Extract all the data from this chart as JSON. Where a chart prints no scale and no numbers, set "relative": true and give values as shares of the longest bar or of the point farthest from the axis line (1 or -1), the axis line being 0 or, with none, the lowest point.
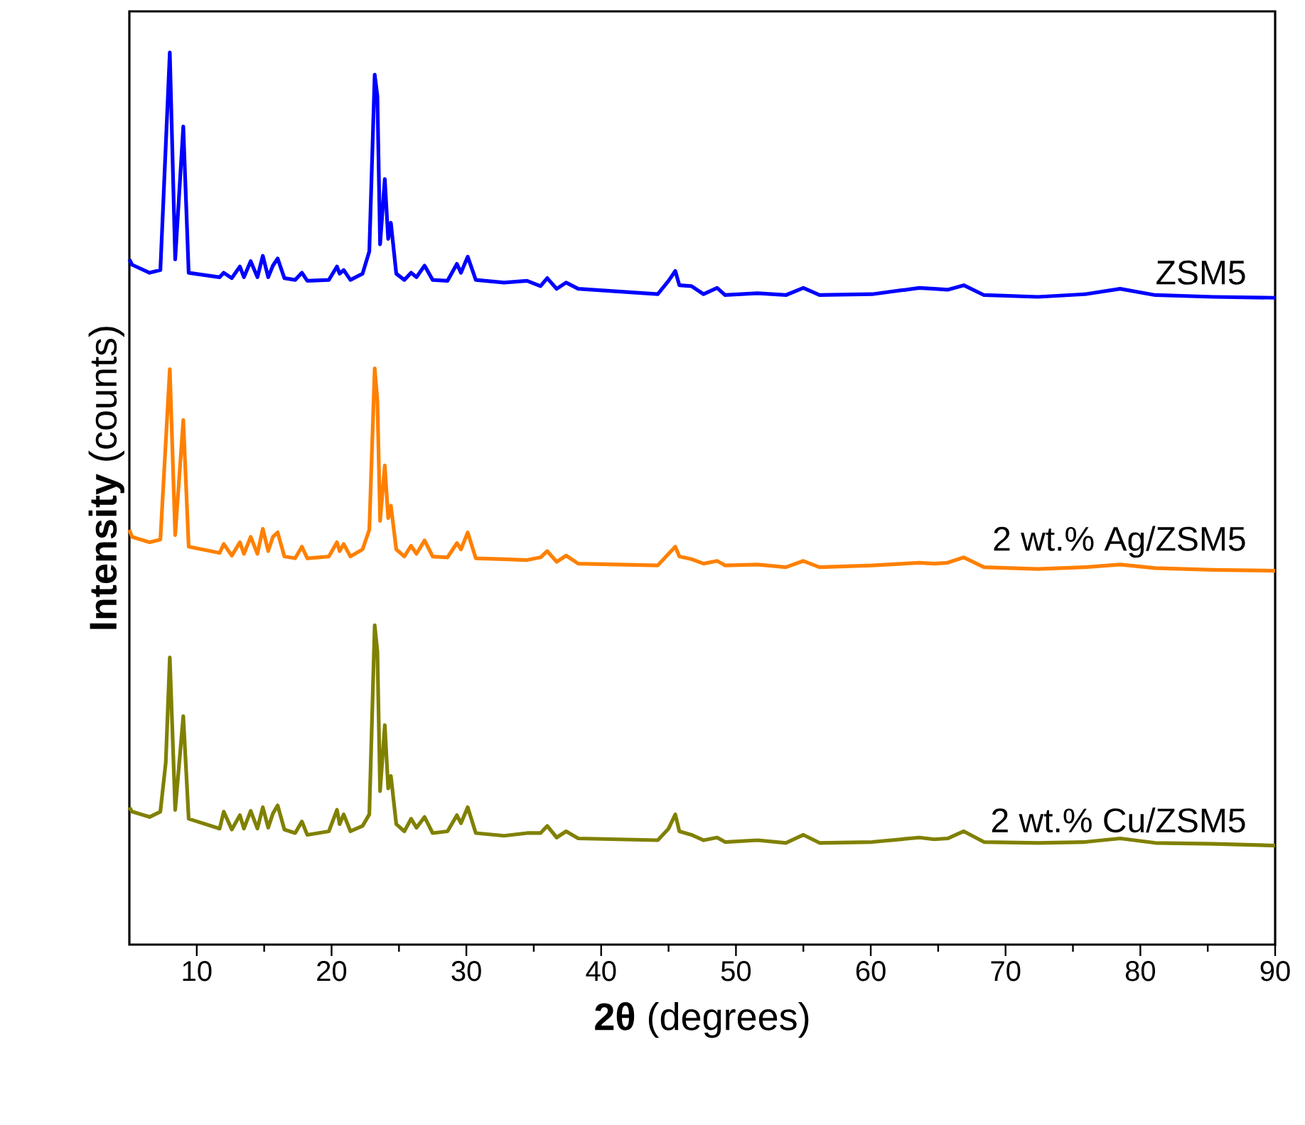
{
  "chart_data": {
    "type": "line",
    "relative": true,
    "xlabel": "**2θ** (degrees)",
    "ylabel": "**Intensity** (counts)",
    "xlim": [
      5,
      90
    ],
    "xticks": [
      10,
      20,
      30,
      40,
      50,
      60,
      70,
      80,
      90
    ],
    "series": [
      {
        "name": "ZSM5",
        "color": "#0000ff",
        "x": [
          5,
          5.2,
          6.5,
          7.3,
          8.0,
          8.4,
          9.0,
          9.4,
          11.7,
          12.0,
          12.6,
          13.2,
          13.5,
          14.0,
          14.5,
          14.9,
          15.3,
          15.65,
          16.0,
          16.5,
          17.3,
          17.8,
          18.2,
          19.8,
          20.4,
          20.6,
          20.9,
          21.4,
          22.3,
          22.8,
          23.2,
          23.4,
          23.6,
          23.95,
          24.2,
          24.4,
          24.8,
          25.4,
          25.9,
          26.3,
          26.9,
          27.5,
          28.6,
          29.3,
          29.6,
          30.1,
          30.7,
          32.8,
          34.5,
          35.5,
          36.0,
          36.7,
          37.4,
          38.3,
          44.2,
          45.0,
          45.5,
          45.8,
          46.7,
          47.6,
          48.6,
          49.2,
          51.6,
          53.7,
          55.0,
          56.2,
          60.1,
          63.6,
          64.7,
          65.7,
          66.9,
          68.4,
          72.4,
          75.9,
          78.5,
          81.1,
          85.4,
          90
        ],
        "values": [
          0.768,
          0.762,
          0.753,
          0.756,
          1.0,
          0.768,
          0.917,
          0.753,
          0.748,
          0.753,
          0.747,
          0.76,
          0.748,
          0.766,
          0.748,
          0.772,
          0.748,
          0.761,
          0.769,
          0.747,
          0.745,
          0.753,
          0.744,
          0.745,
          0.76,
          0.752,
          0.756,
          0.745,
          0.752,
          0.777,
          0.975,
          0.951,
          0.785,
          0.858,
          0.791,
          0.809,
          0.752,
          0.745,
          0.753,
          0.748,
          0.761,
          0.745,
          0.744,
          0.763,
          0.753,
          0.771,
          0.745,
          0.742,
          0.744,
          0.738,
          0.747,
          0.735,
          0.742,
          0.735,
          0.729,
          0.744,
          0.755,
          0.739,
          0.738,
          0.729,
          0.736,
          0.728,
          0.73,
          0.728,
          0.736,
          0.728,
          0.729,
          0.736,
          0.735,
          0.734,
          0.739,
          0.728,
          0.726,
          0.729,
          0.735,
          0.728,
          0.726,
          0.725
        ]
      },
      {
        "name": "2 wt.% Ag/ZSM5",
        "color": "#ff8000",
        "x": [
          5,
          5.2,
          6.5,
          7.3,
          8.0,
          8.4,
          9.0,
          9.4,
          11.7,
          12.0,
          12.6,
          13.2,
          13.5,
          14.0,
          14.5,
          14.9,
          15.3,
          15.65,
          16.0,
          16.5,
          17.3,
          17.8,
          18.2,
          19.8,
          20.4,
          20.6,
          20.9,
          21.4,
          22.3,
          22.8,
          23.2,
          23.4,
          23.6,
          23.95,
          24.2,
          24.4,
          24.8,
          25.4,
          25.9,
          26.3,
          26.9,
          27.5,
          28.6,
          29.3,
          29.6,
          30.1,
          30.7,
          32.8,
          34.5,
          35.5,
          36.0,
          36.7,
          37.4,
          38.3,
          44.2,
          45.0,
          45.5,
          45.8,
          46.7,
          47.6,
          48.6,
          49.2,
          51.6,
          53.7,
          55.0,
          56.2,
          60.1,
          63.6,
          64.7,
          65.7,
          66.9,
          68.4,
          72.4,
          75.9,
          78.5,
          81.1,
          85.4,
          90
        ],
        "values": [
          0.465,
          0.457,
          0.451,
          0.454,
          0.645,
          0.459,
          0.588,
          0.446,
          0.439,
          0.449,
          0.436,
          0.451,
          0.438,
          0.457,
          0.438,
          0.466,
          0.441,
          0.457,
          0.462,
          0.435,
          0.433,
          0.446,
          0.433,
          0.435,
          0.451,
          0.441,
          0.449,
          0.435,
          0.443,
          0.465,
          0.646,
          0.61,
          0.475,
          0.537,
          0.478,
          0.492,
          0.443,
          0.435,
          0.447,
          0.438,
          0.453,
          0.435,
          0.434,
          0.45,
          0.443,
          0.462,
          0.433,
          0.432,
          0.431,
          0.434,
          0.441,
          0.429,
          0.436,
          0.427,
          0.425,
          0.438,
          0.446,
          0.435,
          0.432,
          0.427,
          0.43,
          0.425,
          0.426,
          0.423,
          0.43,
          0.423,
          0.425,
          0.428,
          0.427,
          0.428,
          0.434,
          0.423,
          0.421,
          0.423,
          0.426,
          0.422,
          0.42,
          0.419
        ]
      },
      {
        "name": "2 wt.% Cu/ZSM5",
        "color": "#808000",
        "x": [
          5,
          5.2,
          6.5,
          7.3,
          7.7,
          8.0,
          8.4,
          9.0,
          9.4,
          11.7,
          12.0,
          12.6,
          13.2,
          13.5,
          14.0,
          14.5,
          14.9,
          15.3,
          15.65,
          16.0,
          16.5,
          17.3,
          17.8,
          18.2,
          19.8,
          20.4,
          20.6,
          20.9,
          21.4,
          22.3,
          22.8,
          23.2,
          23.4,
          23.6,
          23.95,
          24.2,
          24.4,
          24.8,
          25.4,
          25.9,
          26.3,
          26.9,
          27.5,
          28.6,
          29.3,
          29.6,
          30.1,
          30.7,
          32.8,
          34.5,
          35.5,
          36.0,
          36.7,
          37.4,
          38.3,
          44.2,
          45.0,
          45.5,
          45.8,
          46.7,
          47.6,
          48.6,
          49.2,
          51.6,
          53.7,
          55.0,
          56.2,
          60.1,
          63.6,
          64.7,
          65.7,
          66.9,
          68.4,
          72.4,
          75.9,
          78.5,
          81.1,
          85.4,
          90
        ],
        "values": [
          0.154,
          0.149,
          0.143,
          0.149,
          0.204,
          0.322,
          0.151,
          0.256,
          0.141,
          0.13,
          0.149,
          0.129,
          0.145,
          0.13,
          0.15,
          0.13,
          0.154,
          0.131,
          0.147,
          0.156,
          0.129,
          0.125,
          0.138,
          0.123,
          0.127,
          0.151,
          0.135,
          0.146,
          0.127,
          0.133,
          0.146,
          0.358,
          0.329,
          0.172,
          0.246,
          0.175,
          0.189,
          0.135,
          0.127,
          0.141,
          0.131,
          0.143,
          0.125,
          0.127,
          0.145,
          0.136,
          0.154,
          0.125,
          0.122,
          0.125,
          0.125,
          0.133,
          0.12,
          0.127,
          0.119,
          0.117,
          0.13,
          0.146,
          0.127,
          0.123,
          0.117,
          0.12,
          0.115,
          0.117,
          0.114,
          0.123,
          0.114,
          0.115,
          0.12,
          0.118,
          0.119,
          0.127,
          0.115,
          0.114,
          0.115,
          0.119,
          0.114,
          0.113,
          0.111
        ]
      }
    ]
  }
}
